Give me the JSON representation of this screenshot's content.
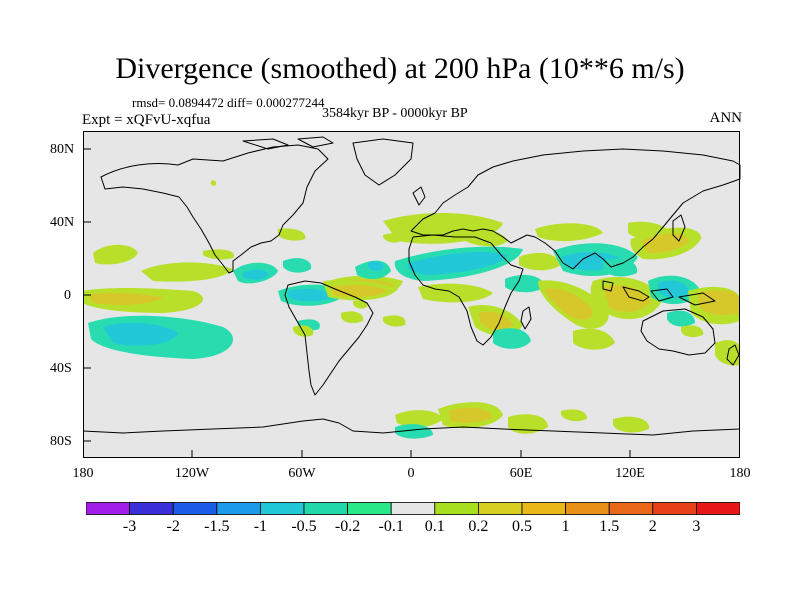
{
  "title": "Divergence (smoothed) at 200 hPa (10**6 m/s)",
  "stats": "rmsd= 0.0894472 diff= 0.000277244",
  "experiment": "Expt = xQFvU-xqfua",
  "period": "3584kyr BP - 0000kyr BP",
  "season": "ANN",
  "y_ticks": [
    "80N",
    "40N",
    "0",
    "40S",
    "80S"
  ],
  "x_ticks": [
    "180",
    "120W",
    "60W",
    "0",
    "60E",
    "120E",
    "180"
  ],
  "colorbar": {
    "labels": [
      "-3",
      "-2",
      "-1.5",
      "-1",
      "-0.5",
      "-0.2",
      "-0.1",
      "0.1",
      "0.2",
      "0.5",
      "1",
      "1.5",
      "2",
      "3"
    ],
    "colors": [
      "#a01ee8",
      "#3a2ed8",
      "#1a5ce8",
      "#1a9ae8",
      "#22c8d8",
      "#22d8a8",
      "#28e888",
      "#e6e6e6",
      "#a8e020",
      "#d8d020",
      "#e8b818",
      "#e89018",
      "#e86818",
      "#e84018",
      "#e81818"
    ]
  },
  "map_colors": {
    "background": "#e6e6e6",
    "pos_light": "#b8e02a",
    "pos_mid": "#d6c82a",
    "pos_strong": "#e2a824",
    "neg_light": "#28dcb0",
    "neg_mid": "#22c8d8",
    "neg_strong": "#1aa8e0"
  }
}
